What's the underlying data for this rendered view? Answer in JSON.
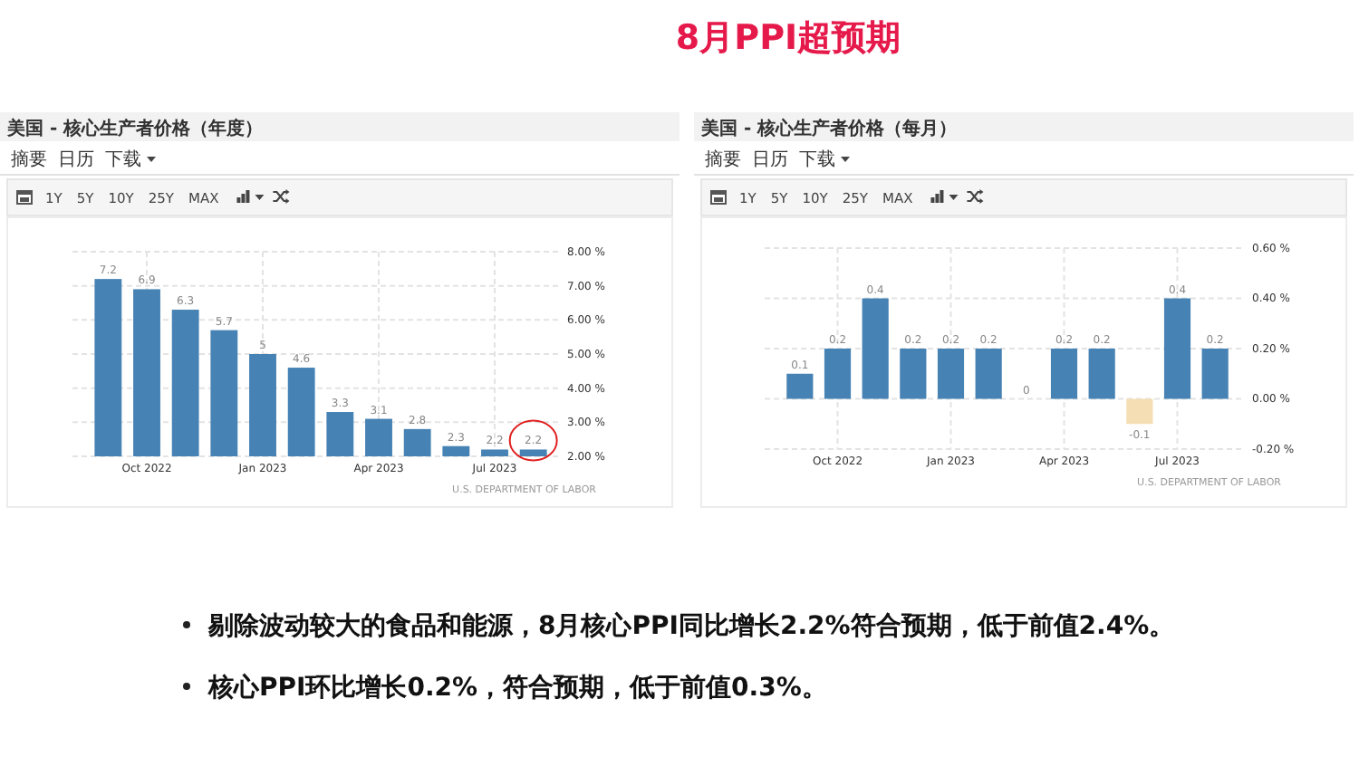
{
  "chart_data": [
    {
      "type": "other",
      "title": "8月PPI超预期"
    },
    {
      "type": "bar",
      "title": "美国 - 核心生产者价格（年度）",
      "categories": [
        null,
        "Oct 2022",
        null,
        null,
        "Jan 2023",
        null,
        null,
        "Apr 2023",
        null,
        null,
        "Jul 2023",
        null
      ],
      "values": [
        7.2,
        6.9,
        6.3,
        5.7,
        5,
        4.6,
        3.3,
        3.1,
        2.8,
        2.3,
        2.2,
        2.2
      ],
      "color": "#4682b4",
      "ylim": [
        2,
        8
      ],
      "yticks": [
        {
          "value": 2,
          "label": "2.00 %"
        },
        {
          "value": 3,
          "label": "3.00 %"
        },
        {
          "value": 4,
          "label": "4.00 %"
        },
        {
          "value": 5,
          "label": "5.00 %"
        },
        {
          "value": 6,
          "label": "6.00 %"
        },
        {
          "value": 7,
          "label": "7.00 %"
        },
        {
          "value": 8,
          "label": "8.00 %"
        }
      ],
      "grid": true,
      "data_labels": true,
      "annotations": [
        "摘要",
        "日历",
        "下载",
        "1Y",
        "5Y",
        "10Y",
        "25Y",
        "MAX",
        "U.S. DEPARTMENT OF LABOR"
      ]
    },
    {
      "type": "bar",
      "title": "美国 - 核心生产者价格（每月）",
      "categories": [
        null,
        "Oct 2022",
        null,
        null,
        "Jan 2023",
        null,
        null,
        "Apr 2023",
        null,
        null,
        "Jul 2023",
        null
      ],
      "values": [
        0.1,
        0.2,
        0.4,
        0.2,
        0.2,
        0.2,
        0,
        0.2,
        0.2,
        -0.1,
        0.4,
        0.2
      ],
      "colors": [
        "#4682b4",
        "#4682b4",
        "#4682b4",
        "#4682b4",
        "#4682b4",
        "#4682b4",
        "#4682b4",
        "#4682b4",
        "#4682b4",
        "#f5deb3",
        "#4682b4",
        "#4682b4"
      ],
      "ylim": [
        -0.2,
        0.6
      ],
      "yticks": [
        {
          "value": -0.2,
          "label": "-0.20 %"
        },
        {
          "value": 0,
          "label": "0.00 %"
        },
        {
          "value": 0.2,
          "label": "0.20 %"
        },
        {
          "value": 0.4,
          "label": "0.40 %"
        },
        {
          "value": 0.6,
          "label": "0.60 %"
        }
      ],
      "grid": true,
      "data_labels": true,
      "annotations": [
        "摘要",
        "日历",
        "下载",
        "1Y",
        "5Y",
        "10Y",
        "25Y",
        "MAX",
        "U.S. DEPARTMENT OF LABOR"
      ]
    },
    {
      "type": "other",
      "annotations": [
        "剔除波动较大的食品和能源，8月核心PPI同比增长2.2%符合预期，低于前值2.4%。",
        "核心PPI环比增长0.2%，符合预期，低于前值0.3%。"
      ]
    }
  ]
}
